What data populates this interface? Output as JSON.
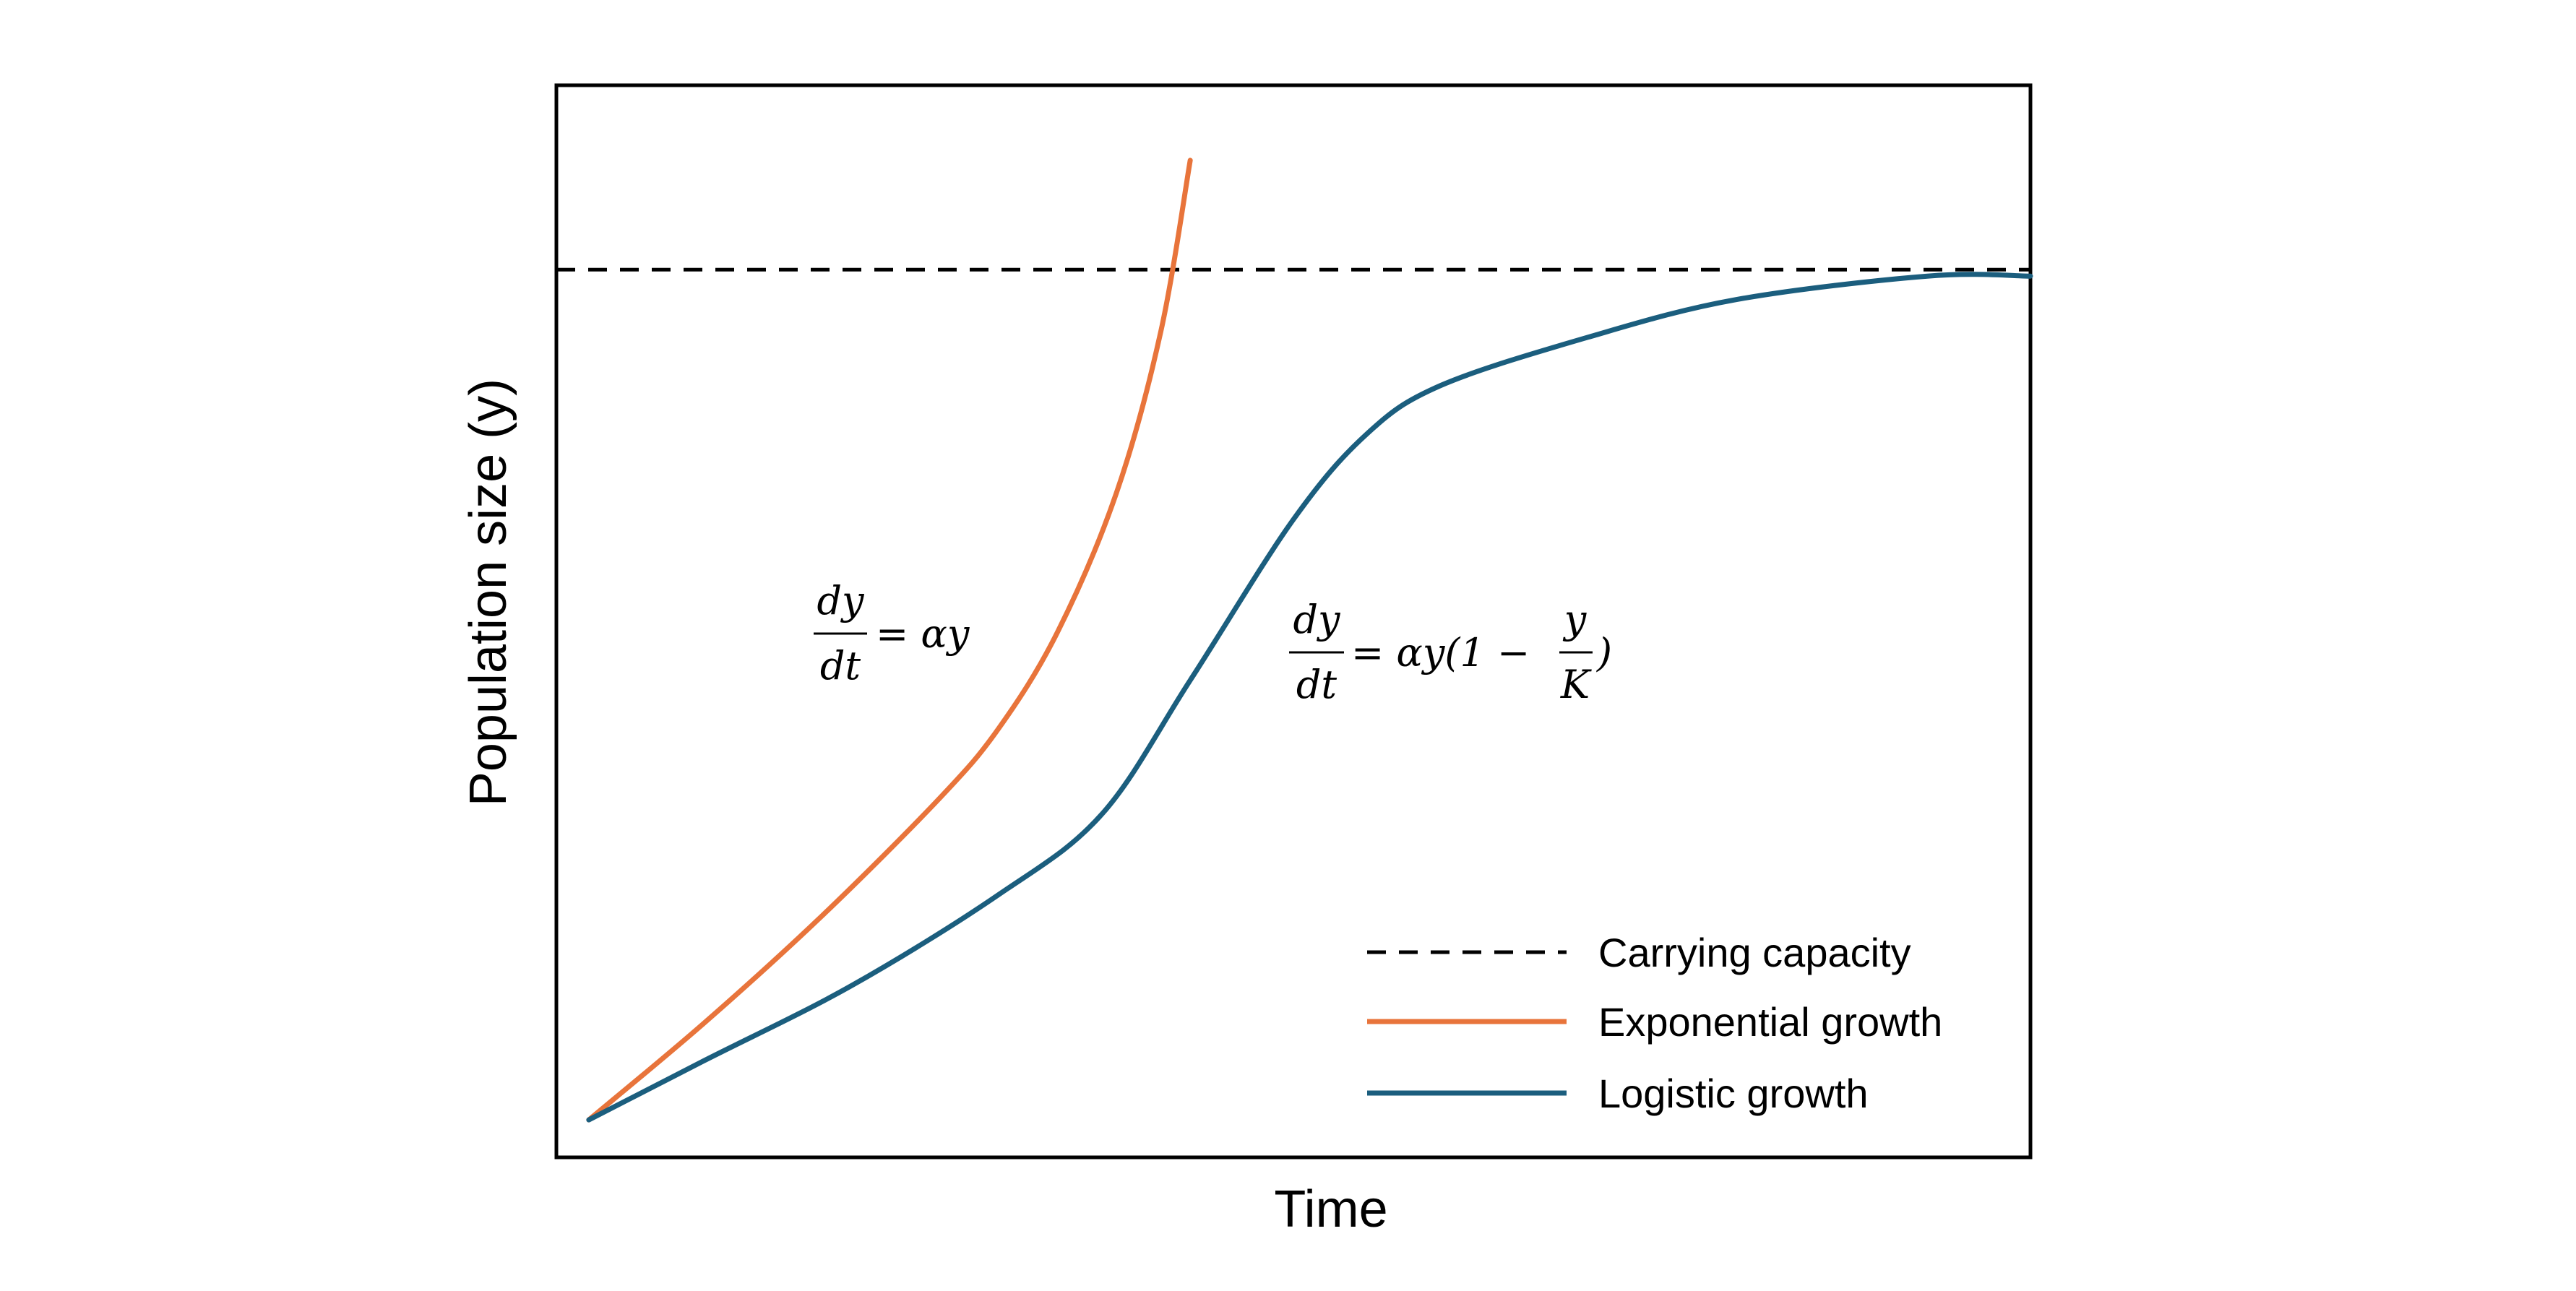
{
  "chart_data": {
    "type": "line",
    "xlabel": "Time",
    "ylabel": "Population size (y)",
    "xlim": [
      0,
      10
    ],
    "ylim": [
      0,
      10
    ],
    "grid": false,
    "legend_position": "bottom-right",
    "colors": {
      "carrying_capacity": "#000000",
      "exponential": "#E8743B",
      "logistic": "#1B5E7E"
    },
    "series": [
      {
        "name": "Carrying capacity",
        "style": "dashed",
        "x": [
          0,
          10
        ],
        "y": [
          8.28,
          8.28
        ]
      },
      {
        "name": "Exponential growth",
        "style": "solid",
        "x": [
          0.22,
          1.0,
          1.8,
          2.6,
          3.0,
          3.4,
          3.8,
          4.1,
          4.3
        ],
        "y": [
          0.35,
          1.25,
          2.25,
          3.35,
          4.0,
          4.9,
          6.2,
          7.7,
          9.3
        ]
      },
      {
        "name": "Logistic growth",
        "style": "solid",
        "x": [
          0.22,
          1.0,
          2.0,
          3.0,
          3.7,
          4.3,
          5.0,
          5.5,
          6.0,
          7.0,
          8.0,
          9.3,
          10.0
        ],
        "y": [
          0.35,
          0.9,
          1.6,
          2.45,
          3.2,
          4.45,
          5.95,
          6.75,
          7.2,
          7.65,
          8.0,
          8.22,
          8.22
        ]
      }
    ],
    "annotations": {
      "exponential_eq": {
        "num": "dy",
        "den": "dt",
        "rhs": "= αy"
      },
      "logistic_eq": {
        "num": "dy",
        "den": "dt",
        "rhs_a": "= αy(1 − ",
        "inner_num": "y",
        "inner_den": "K",
        "rhs_b": ")"
      }
    }
  }
}
